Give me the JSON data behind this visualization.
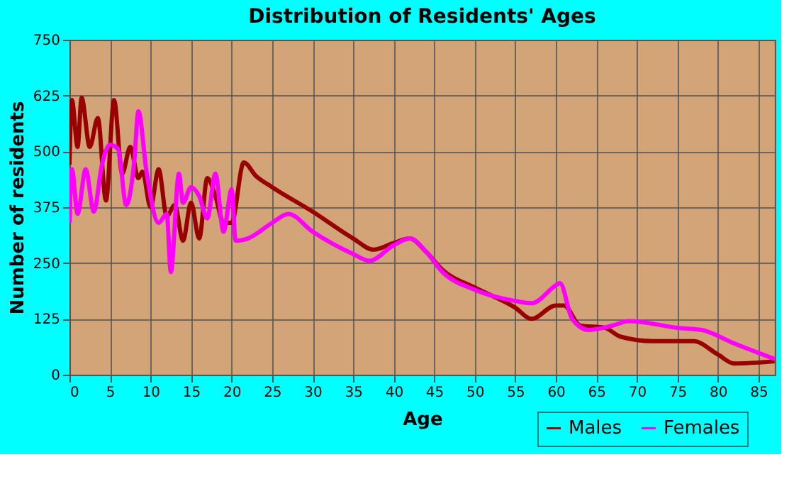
{
  "chart_data": {
    "type": "line",
    "title": "Distribution of Residents' Ages",
    "xlabel": "Age",
    "ylabel": "Number of residents",
    "xlim": [
      0,
      87
    ],
    "xticks": [
      0,
      5,
      10,
      15,
      20,
      25,
      30,
      35,
      40,
      45,
      50,
      55,
      60,
      65,
      70,
      75,
      80,
      85
    ],
    "ylim": [
      0,
      750
    ],
    "yticks": [
      0,
      125,
      250,
      375,
      500,
      625,
      750
    ],
    "grid": true,
    "legend": "bottom right",
    "series": [
      {
        "name": "Males",
        "color": "#990000",
        "x": [
          0,
          0.3,
          1,
          1.5,
          2.5,
          3.5,
          4.5,
          5.5,
          6.5,
          7.5,
          8.5,
          9,
          10,
          11,
          12,
          13,
          14,
          15,
          16,
          17,
          18,
          19,
          20,
          21.5,
          23,
          25,
          30,
          35,
          37.5,
          40,
          42,
          44,
          46,
          50,
          55,
          57,
          60,
          61,
          63,
          66,
          68,
          72,
          77,
          80,
          82,
          87
        ],
        "values": [
          470,
          615,
          510,
          620,
          510,
          575,
          390,
          615,
          450,
          510,
          440,
          455,
          375,
          460,
          355,
          380,
          300,
          385,
          305,
          440,
          400,
          340,
          340,
          475,
          445,
          420,
          365,
          305,
          280,
          295,
          305,
          275,
          235,
          195,
          150,
          125,
          155,
          155,
          110,
          105,
          85,
          75,
          75,
          45,
          25,
          30
        ]
      },
      {
        "name": "Females",
        "color": "#ff00ff",
        "x": [
          0,
          0.3,
          1,
          2,
          3,
          4,
          5,
          6,
          7,
          8,
          8.5,
          9.5,
          11,
          12,
          12.5,
          13.5,
          14,
          15,
          16,
          17,
          18,
          19,
          20,
          20.5,
          22,
          25,
          27,
          30,
          35,
          37,
          40,
          42,
          44,
          46,
          50,
          55,
          57,
          60,
          60.5,
          62,
          64,
          67,
          69,
          75,
          78,
          82,
          87
        ],
        "values": [
          340,
          460,
          360,
          460,
          365,
          470,
          515,
          505,
          380,
          480,
          590,
          455,
          340,
          360,
          230,
          450,
          385,
          420,
          400,
          350,
          450,
          320,
          415,
          300,
          305,
          340,
          360,
          320,
          270,
          255,
          290,
          305,
          275,
          230,
          190,
          165,
          160,
          200,
          205,
          125,
          100,
          110,
          120,
          105,
          100,
          70,
          35
        ]
      }
    ]
  }
}
